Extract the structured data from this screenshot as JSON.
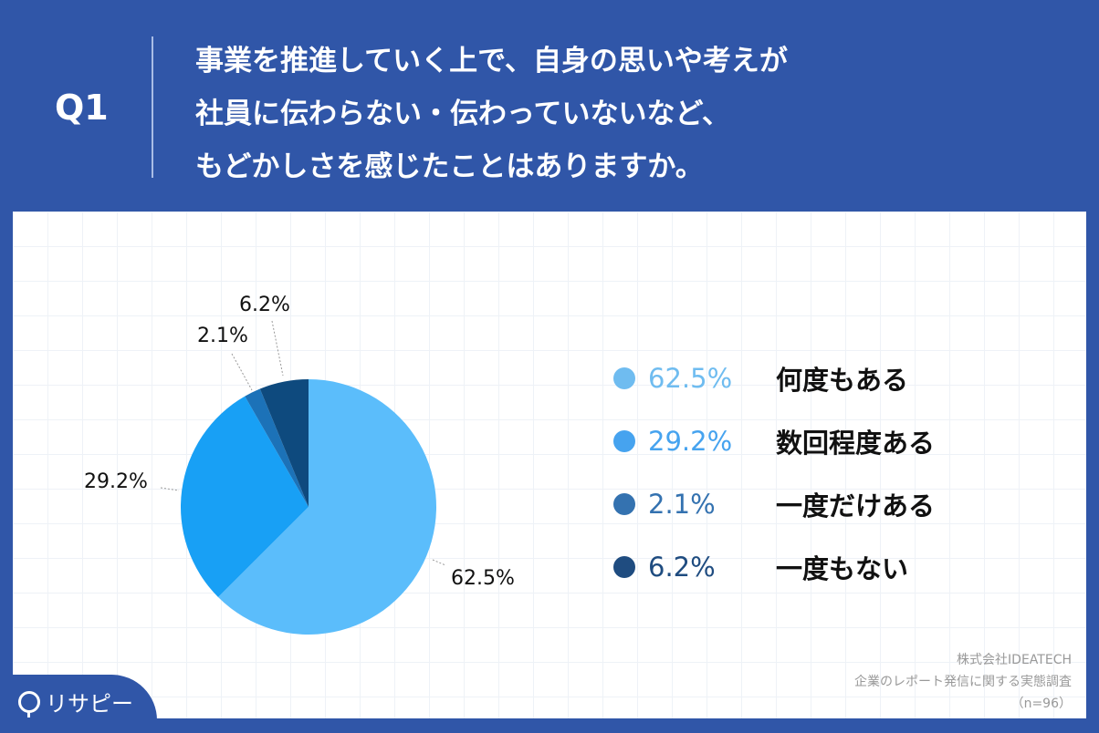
{
  "header": {
    "q_label": "Q1",
    "question_lines": [
      "事業を推進していく上で、自身の思いや考えが",
      "社員に伝わらない・伝わっていないなど、",
      "もどかしさを感じたことはありますか。"
    ]
  },
  "chart_data": {
    "type": "pie",
    "title": "事業を推進していく上で、自身の思いや考えが社員に伝わらない・伝わっていないなど、もどかしさを感じたことはありますか。",
    "categories": [
      "何度もある",
      "数回程度ある",
      "一度だけある",
      "一度もない"
    ],
    "values": [
      62.5,
      29.2,
      2.1,
      6.2
    ],
    "colors": [
      "#5bbdfb",
      "#18a0f5",
      "#1c72b8",
      "#0e4a7e"
    ],
    "value_labels": [
      "62.5%",
      "29.2%",
      "2.1%",
      "6.2%"
    ],
    "legend_position": "right",
    "start_angle": "12 o'clock, clockwise"
  },
  "legend": [
    {
      "value": "62.5%",
      "label": "何度もある",
      "color": "#6fbcf0"
    },
    {
      "value": "29.2%",
      "label": "数回程度ある",
      "color": "#46a3ef"
    },
    {
      "value": "2.1%",
      "label": "一度だけある",
      "color": "#3472b0"
    },
    {
      "value": "6.2%",
      "label": "一度もない",
      "color": "#1f4c80"
    }
  ],
  "source": {
    "company": "株式会社IDEATECH",
    "survey": "企業のレポート発信に関する実態調査",
    "n": "（n=96）"
  },
  "logo": {
    "text": "リサピー"
  }
}
